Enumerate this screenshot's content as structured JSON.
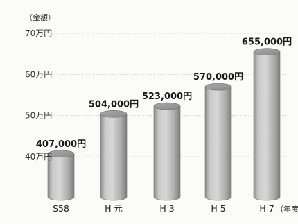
{
  "chart_data": {
    "type": "bar",
    "ylabel": "（金額）",
    "categories": [
      "S58",
      "H 元",
      "H 3",
      "H 5",
      "H 7"
    ],
    "values": [
      407000,
      504000,
      523000,
      570000,
      655000
    ],
    "data_labels": [
      "407,000円",
      "504,000円",
      "523,000円",
      "570,000円",
      "655,000円"
    ],
    "x_unit": "（年度）",
    "ylim": [
      330000,
      700000
    ],
    "y_ticks": [
      400000,
      500000,
      600000,
      700000
    ],
    "y_tick_labels": [
      "40万円",
      "50万円",
      "60万円",
      "70万円"
    ],
    "grid": true,
    "bar_style": "cylinder",
    "bar_color": "#b9b9b9"
  }
}
